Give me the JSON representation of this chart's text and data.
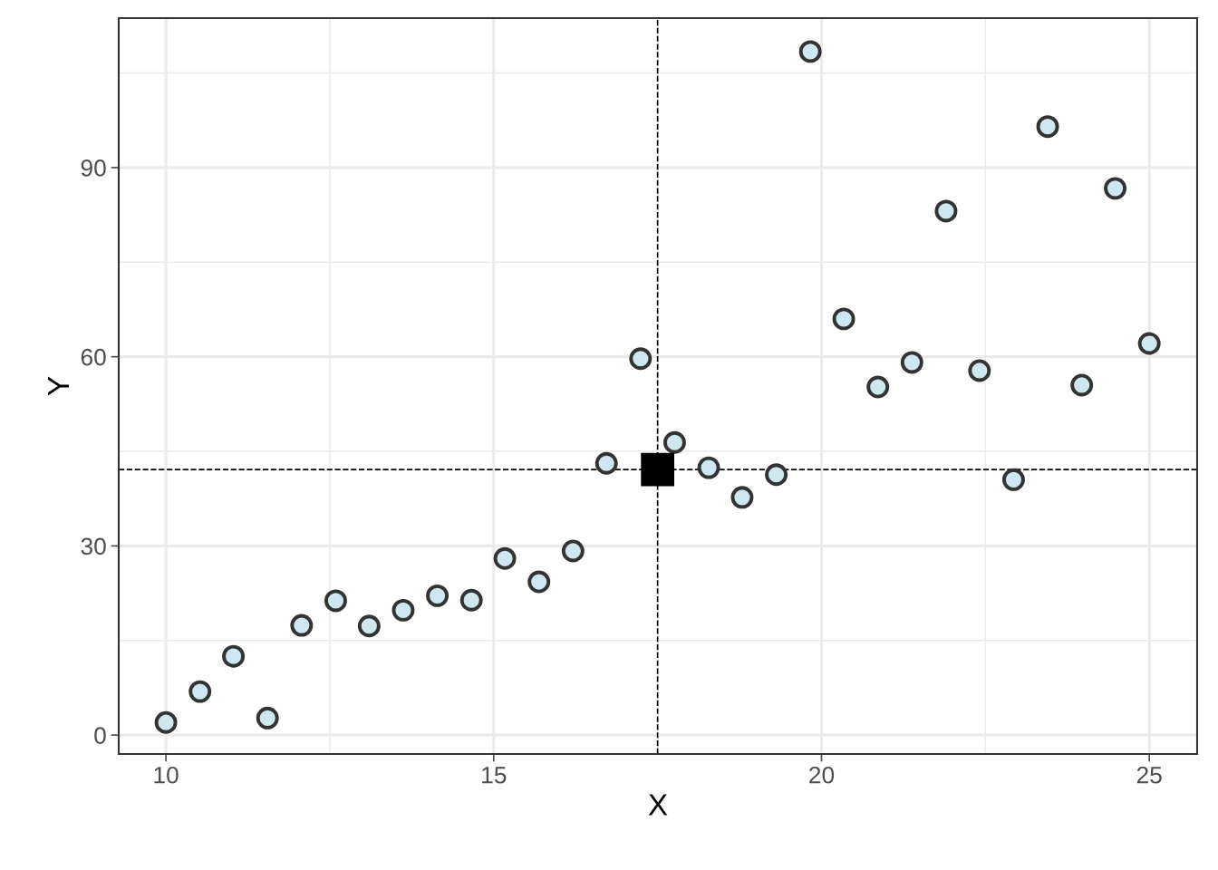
{
  "chart_data": {
    "type": "scatter",
    "xlabel": "X",
    "ylabel": "Y",
    "xlim": [
      9.28,
      25.73
    ],
    "ylim": [
      -3.0,
      113.7
    ],
    "xticks": [
      10,
      15,
      20,
      25
    ],
    "yticks": [
      0,
      30,
      60,
      90
    ],
    "grid": true,
    "legend": false,
    "series": [
      {
        "color": "#cfe8ef",
        "marker": "circle",
        "x": [
          10.0,
          10.52,
          11.03,
          11.55,
          12.07,
          12.59,
          13.1,
          13.62,
          14.14,
          14.66,
          15.17,
          15.69,
          16.21,
          16.72,
          17.24,
          17.76,
          18.28,
          18.79,
          19.31,
          19.83,
          20.34,
          20.86,
          21.38,
          21.9,
          22.41,
          22.93,
          23.45,
          23.97,
          24.48,
          25.0
        ],
        "values": [
          2.0,
          6.9,
          12.5,
          2.7,
          17.4,
          21.3,
          17.3,
          19.8,
          22.1,
          21.4,
          28.0,
          24.3,
          29.2,
          43.1,
          59.7,
          46.4,
          42.4,
          37.7,
          41.3,
          108.4,
          66.0,
          55.2,
          59.1,
          83.1,
          57.8,
          40.5,
          96.5,
          55.5,
          86.7,
          62.1
        ]
      },
      {
        "color": "#000000",
        "marker": "square",
        "x": [
          17.5
        ],
        "values": [
          42.1
        ]
      }
    ],
    "ref_lines": [
      {
        "axis": "x",
        "value": 17.5,
        "line_style": "dashed",
        "color": "#000000"
      },
      {
        "axis": "y",
        "value": 42.1,
        "line_style": "dashed",
        "color": "#000000"
      }
    ]
  }
}
